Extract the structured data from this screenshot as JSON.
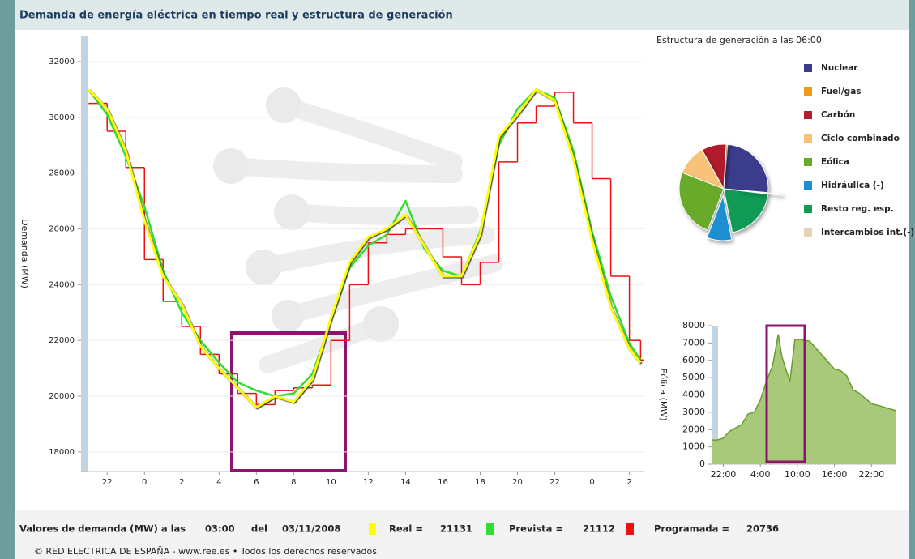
{
  "header": {
    "title": "Demanda de energía eléctrica en tiempo real y estructura de generación"
  },
  "chart_data": [
    {
      "type": "line",
      "y_label": "Demanda (MW)",
      "grid": true,
      "x": [
        -3,
        -2,
        -1,
        0,
        1,
        2,
        3,
        4,
        5,
        6,
        7,
        8,
        9,
        10,
        11,
        12,
        13,
        14,
        15,
        16,
        17,
        18,
        19,
        20,
        21,
        22,
        23,
        24,
        25,
        26,
        26.6
      ],
      "xlim": [
        -3.4,
        26.8
      ],
      "xticks": [
        {
          "value": -2,
          "label": "22"
        },
        0,
        2,
        4,
        6,
        8,
        10,
        12,
        14,
        16,
        18,
        20,
        22,
        {
          "value": 24,
          "label": "0"
        },
        {
          "value": 26,
          "label": "2"
        }
      ],
      "ylim": [
        17300,
        32900
      ],
      "yticks": [
        18000,
        20000,
        22000,
        24000,
        26000,
        28000,
        30000,
        32000
      ],
      "series": [
        {
          "color": "#ffff00",
          "values": [
            31000,
            30300,
            28800,
            26300,
            24300,
            23300,
            21800,
            21000,
            20300,
            19600,
            20000,
            19800,
            20600,
            22800,
            24800,
            25700,
            26000,
            26500,
            25400,
            24300,
            24300,
            25800,
            29300,
            30100,
            31000,
            30600,
            28500,
            25600,
            23200,
            21700,
            21200
          ]
        },
        {
          "color": "#33dd33",
          "values": [
            31000,
            30100,
            28600,
            26800,
            24500,
            23000,
            22000,
            21200,
            20500,
            20200,
            20000,
            20100,
            20800,
            22700,
            24600,
            25400,
            25800,
            27000,
            25300,
            24500,
            24300,
            25900,
            29000,
            30300,
            31000,
            30700,
            28800,
            25900,
            23600,
            21900,
            21300
          ]
        },
        {
          "color": "#ee1111",
          "step": true,
          "values": [
            30500,
            29500,
            28200,
            24900,
            23400,
            22500,
            21500,
            20800,
            20100,
            19700,
            20200,
            20300,
            20400,
            22000,
            24000,
            25500,
            25800,
            26000,
            26000,
            25000,
            24000,
            24800,
            28400,
            29800,
            30400,
            30900,
            29800,
            27800,
            24300,
            22000,
            21300
          ]
        }
      ]
    },
    {
      "type": "pie",
      "title": "Estructura de generación a las 06:00",
      "categories": [
        "Nuclear",
        "Fuel/gas",
        "Carbón",
        "Ciclo combinado",
        "Eólica",
        "Hidráulica (-)",
        "Resto reg. esp.",
        "Intercambios int.(-)"
      ],
      "values": [
        25,
        0.5,
        9,
        11,
        25,
        9,
        20,
        0.5
      ],
      "colors": [
        "#3c3c8c",
        "#f09a1a",
        "#b01c2c",
        "#f8c27a",
        "#6aaa2a",
        "#1d8fd0",
        "#0f9a55",
        "#e2d4b4"
      ],
      "exploded": [
        5,
        7
      ]
    },
    {
      "type": "area",
      "y_label": "Eólica (MW)",
      "color": "#a9c97a",
      "line_color": "#6a9a30",
      "x": [
        -3.9,
        -3,
        -2,
        -1,
        0,
        1,
        2,
        3,
        4,
        5,
        6,
        6.9,
        7.5,
        8.3,
        8.8,
        9.6,
        10.5,
        12,
        14,
        16,
        17,
        18,
        19,
        20,
        22,
        24,
        25.9
      ],
      "values": [
        1400,
        1400,
        1500,
        1900,
        2100,
        2300,
        2900,
        3000,
        3700,
        4800,
        5700,
        7500,
        6200,
        5300,
        4800,
        7200,
        7200,
        7100,
        6300,
        5500,
        5400,
        5100,
        4300,
        4100,
        3500,
        3300,
        3100
      ],
      "xlim": [
        -3.9,
        25.9
      ],
      "xticks": [
        {
          "value": -2,
          "label": "22:00"
        },
        {
          "value": 4,
          "label": "4:00"
        },
        {
          "value": 10,
          "label": "10:00"
        },
        {
          "value": 16,
          "label": "16:00"
        },
        {
          "value": 22,
          "label": "22:00"
        }
      ],
      "ylim": [
        0,
        8000
      ],
      "yticks": [
        0,
        1000,
        2000,
        3000,
        4000,
        5000,
        6000,
        7000,
        8000
      ]
    }
  ],
  "readout": {
    "label": "Valores de demanda (MW) a las",
    "time": "03:00",
    "del": "del",
    "date": "03/11/2008",
    "items": [
      {
        "label": "Real =",
        "value": "21131"
      },
      {
        "label": "Prevista =",
        "value": "21112"
      },
      {
        "label": "Programada =",
        "value": "20736"
      }
    ]
  },
  "footer": {
    "text": "© RED ELECTRICA DE ESPAÑA - www.ree.es • Todos los derechos reservados"
  }
}
